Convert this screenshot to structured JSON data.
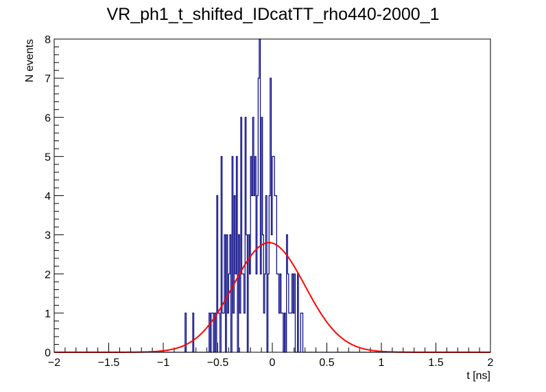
{
  "chart_data": {
    "type": "histogram",
    "title": "VR_ph1_t_shifted_IDcatTT_rho440-2000_1",
    "xlabel": "t [ns]",
    "ylabel": "N events",
    "xlim": [
      -2,
      2
    ],
    "ylim": [
      0,
      8
    ],
    "x_ticks": [
      "−2",
      "−1.5",
      "−1",
      "−0.5",
      "0",
      "0.5",
      "1",
      "1.5",
      "2"
    ],
    "y_ticks": [
      "0",
      "1",
      "2",
      "3",
      "4",
      "5",
      "6",
      "7",
      "8"
    ],
    "grid": false,
    "histogram": {
      "bin_width": 0.01,
      "x_start": -2,
      "color": "#000080",
      "counts": [
        0,
        0,
        0,
        0,
        0,
        0,
        0,
        0,
        0,
        0,
        0,
        0,
        0,
        0,
        0,
        0,
        0,
        0,
        0,
        0,
        0,
        0,
        0,
        0,
        0,
        0,
        0,
        0,
        0,
        0,
        0,
        0,
        0,
        0,
        0,
        0,
        0,
        0,
        0,
        0,
        0,
        0,
        0,
        0,
        0,
        0,
        0,
        0,
        0,
        0,
        0,
        0,
        0,
        0,
        0,
        0,
        0,
        0,
        0,
        0,
        0,
        0,
        0,
        0,
        0,
        0,
        0,
        0,
        0,
        0,
        0,
        0,
        0,
        0,
        0,
        0,
        0,
        0,
        0,
        0,
        0,
        0,
        0,
        0,
        0,
        0,
        0,
        0,
        0,
        0,
        0,
        0,
        0,
        0,
        0,
        0,
        0,
        0,
        0,
        0,
        0,
        0,
        0,
        0,
        0,
        0,
        0,
        0,
        0,
        0,
        0,
        0,
        0,
        0,
        0,
        0,
        0,
        0,
        0,
        0,
        1,
        0,
        0,
        0,
        0,
        0,
        0,
        1,
        0,
        0,
        0,
        0,
        0,
        0,
        0,
        0,
        0,
        0,
        0,
        0,
        0,
        0,
        1,
        0,
        1,
        1,
        0,
        1,
        0,
        4,
        1,
        1,
        0,
        5,
        1,
        1,
        3,
        0,
        3,
        1,
        2,
        3,
        0,
        5,
        1,
        4,
        2,
        5,
        0,
        3,
        1,
        6,
        2,
        2,
        1,
        6,
        3,
        0,
        3,
        2,
        5,
        4,
        6,
        4,
        5,
        2,
        4,
        7,
        8,
        2,
        6,
        3,
        1,
        2,
        4,
        0,
        2,
        4,
        7,
        3,
        5,
        5,
        4,
        4,
        2,
        2,
        1,
        2,
        1,
        1,
        0,
        1,
        0,
        3,
        2,
        1,
        1,
        1,
        2,
        1,
        2,
        0,
        0,
        2,
        0,
        0,
        1,
        1,
        0,
        0,
        0,
        0,
        0,
        0,
        0,
        0,
        0,
        0,
        0,
        0,
        0,
        0,
        0,
        0,
        0,
        0,
        0,
        0,
        0,
        0,
        0,
        0,
        0,
        0,
        0,
        0,
        0,
        0,
        0,
        0,
        0,
        0,
        0,
        0,
        0,
        0,
        0,
        0,
        0,
        0,
        0,
        0,
        0,
        0,
        0,
        0,
        0,
        0,
        0,
        0,
        0,
        0,
        0,
        0,
        0,
        0,
        0,
        0,
        0,
        0,
        0,
        0,
        0,
        0,
        0,
        0,
        0,
        0,
        0,
        0,
        0,
        0,
        0,
        0,
        0,
        0,
        0,
        0,
        0,
        0,
        0,
        0,
        0,
        0,
        0,
        0,
        0,
        0,
        0,
        0,
        0,
        0,
        0,
        0,
        0,
        0,
        0,
        0,
        0,
        0,
        0,
        0,
        0,
        0,
        0,
        0,
        0,
        0,
        0,
        0,
        0,
        0,
        0,
        0,
        0,
        0,
        0,
        0,
        0,
        0,
        0,
        0,
        0,
        0,
        0,
        0,
        0,
        0,
        0,
        0,
        0,
        0,
        0,
        0,
        0,
        0,
        0,
        0,
        0,
        0,
        0,
        0,
        0,
        0,
        0,
        0,
        0,
        0,
        0,
        0,
        0,
        0,
        0,
        0,
        0,
        0,
        0,
        0,
        0,
        0,
        0,
        0,
        0,
        0,
        0,
        0,
        0,
        0,
        0,
        0
      ]
    },
    "fit": {
      "type": "gaussian",
      "color": "#ff0000",
      "amplitude": 2.8,
      "mean": -0.03,
      "sigma": 0.33
    }
  }
}
